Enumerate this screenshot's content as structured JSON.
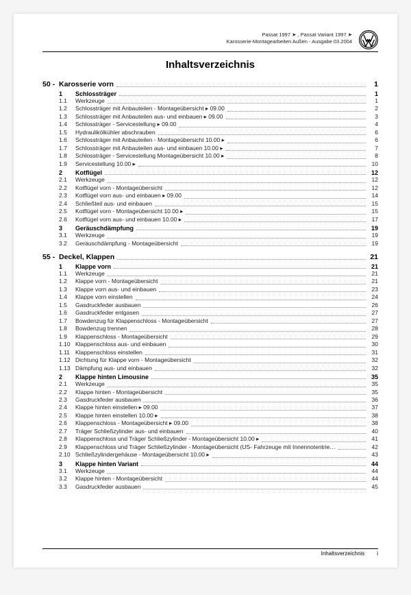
{
  "header": {
    "line1": "Passat 1997 ➤ , Passat Variant 1997 ➤",
    "line2": "Karosserie-Montagearbeiten Außen - Ausgabe 03.2004"
  },
  "title": "Inhaltsverzeichnis",
  "chapters": [
    {
      "num": "50 -",
      "title": "Karosserie vorn",
      "page": "1",
      "sections": [
        {
          "num": "1",
          "title": "Schlossträger",
          "page": "1",
          "entries": [
            {
              "num": "1.1",
              "title": "Werkzeuge",
              "page": "1"
            },
            {
              "num": "1.2",
              "title": "Schlossträger mit Anbauteilen - Montageübersicht ▸ 09.00",
              "page": "2"
            },
            {
              "num": "1.3",
              "title": "Schlossträger mit Anbauteilen aus- und einbauen ▸ 09.00",
              "page": "3"
            },
            {
              "num": "1.4",
              "title": "Schlossträger - Servicestellung ▸ 09.00",
              "page": "4"
            },
            {
              "num": "1.5",
              "title": "Hydraulikölkühler abschrauben",
              "page": "6"
            },
            {
              "num": "1.6",
              "title": "Schlossträger mit Anbauteilen - Montageübersicht 10.00 ▸",
              "page": "6"
            },
            {
              "num": "1.7",
              "title": "Schlossträger mit Anbauteilen aus- und einbauen 10.00 ▸",
              "page": "7"
            },
            {
              "num": "1.8",
              "title": "Schlossträger - Servicestellung Montageübersicht 10.00 ▸",
              "page": "8"
            },
            {
              "num": "1.9",
              "title": "Servicestellung 10.00 ▸",
              "page": "10"
            }
          ]
        },
        {
          "num": "2",
          "title": "Kotflügel",
          "page": "12",
          "entries": [
            {
              "num": "2.1",
              "title": "Werkzeuge",
              "page": "12"
            },
            {
              "num": "2.2",
              "title": "Kotflügel vorn - Montageübersicht",
              "page": "12"
            },
            {
              "num": "2.3",
              "title": "Kotflügel vorn aus- und einbauen ▸ 09.00",
              "page": "14"
            },
            {
              "num": "2.4",
              "title": "Schließteil aus- und einbauen",
              "page": "15"
            },
            {
              "num": "2.5",
              "title": "Kotflügel vorn - Montageübersicht 10.00 ▸",
              "page": "15"
            },
            {
              "num": "2.6",
              "title": "Kotflügel vorn aus- und einbauen 10.00 ▸",
              "page": "17"
            }
          ]
        },
        {
          "num": "3",
          "title": "Geräuschdämpfung",
          "page": "19",
          "entries": [
            {
              "num": "3.1",
              "title": "Werkzeuge",
              "page": "19"
            },
            {
              "num": "3.2",
              "title": "Geräuschdämpfung - Montageübersicht",
              "page": "19"
            }
          ]
        }
      ]
    },
    {
      "num": "55 -",
      "title": "Deckel, Klappen",
      "page": "21",
      "sections": [
        {
          "num": "1",
          "title": "Klappe vorn",
          "page": "21",
          "entries": [
            {
              "num": "1.1",
              "title": "Werkzeuge",
              "page": "21"
            },
            {
              "num": "1.2",
              "title": "Klappe vorn - Montageübersicht",
              "page": "21"
            },
            {
              "num": "1.3",
              "title": "Klappe vorn aus- und einbauen",
              "page": "23"
            },
            {
              "num": "1.4",
              "title": "Klappe vorn einstellen",
              "page": "24"
            },
            {
              "num": "1.5",
              "title": "Gasdruckfeder ausbauen",
              "page": "26"
            },
            {
              "num": "1.6",
              "title": "Gasdruckfeder entgasen",
              "page": "27"
            },
            {
              "num": "1.7",
              "title": "Bowdenzug für Klappenschloss - Montageübersicht",
              "page": "27"
            },
            {
              "num": "1.8",
              "title": "Bowdenzug trennen",
              "page": "28"
            },
            {
              "num": "1.9",
              "title": "Klappenschloss - Montageübersicht",
              "page": "29"
            },
            {
              "num": "1.10",
              "title": "Klappenschloss aus- und einbauen",
              "page": "30"
            },
            {
              "num": "1.11",
              "title": "Klappenschloss einstellen",
              "page": "31"
            },
            {
              "num": "1.12",
              "title": "Dichtung für Klappe vorn - Montageübersicht",
              "page": "32"
            },
            {
              "num": "1.13",
              "title": "Dämpfung aus- und einbauen",
              "page": "32"
            }
          ]
        },
        {
          "num": "2",
          "title": "Klappe hinten Limousine",
          "page": "35",
          "entries": [
            {
              "num": "2.1",
              "title": "Werkzeuge",
              "page": "35"
            },
            {
              "num": "2.2",
              "title": "Klappe hinten - Montageübersicht",
              "page": "35"
            },
            {
              "num": "2.3",
              "title": "Gasdruckfeder ausbauen",
              "page": "36"
            },
            {
              "num": "2.4",
              "title": "Klappe hinten einstellen ▸ 09.00",
              "page": "37"
            },
            {
              "num": "2.5",
              "title": "Klappe hinten einstellen 10.00 ▸",
              "page": "38"
            },
            {
              "num": "2.6",
              "title": "Klappenschloss - Montageübersicht ▸ 09.00",
              "page": "38"
            },
            {
              "num": "2.7",
              "title": "Träger Schließzylinder aus- und einbauen",
              "page": "40"
            },
            {
              "num": "2.8",
              "title": "Klappenschloss und Träger Schließzylinder - Montageübersicht 10.00 ▸",
              "page": "41"
            },
            {
              "num": "2.9",
              "title": "Klappenschloss und Träger Schließzylinder - Montageübersicht (US- Fahrzeuge mit Innennotentriegelung) 10.00 ▸",
              "page": "42"
            },
            {
              "num": "2.10",
              "title": "Schließzylindergehäuse - Montageübersicht 10.00 ▸",
              "page": "43"
            }
          ]
        },
        {
          "num": "3",
          "title": "Klappe hinten Variant",
          "page": "44",
          "entries": [
            {
              "num": "3.1",
              "title": "Werkzeuge",
              "page": "44"
            },
            {
              "num": "3.2",
              "title": "Klappe hinten - Montageübersicht",
              "page": "44"
            },
            {
              "num": "3.3",
              "title": "Gasdruckfeder ausbauen",
              "page": "45"
            }
          ]
        }
      ]
    }
  ],
  "footer": {
    "label": "Inhaltsverzeichnis",
    "pageNum": "i"
  }
}
